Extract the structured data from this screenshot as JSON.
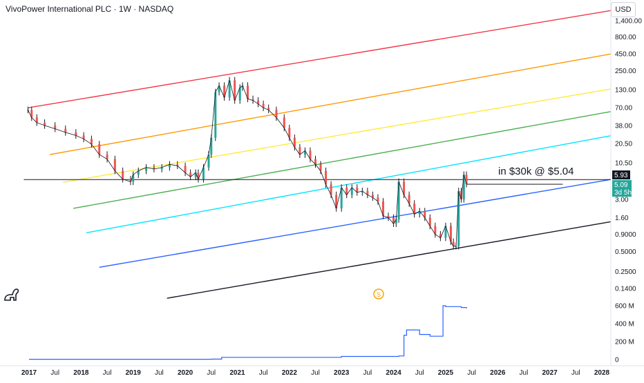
{
  "header": {
    "title": "VivoPower International PLC · 1W · NASDAQ"
  },
  "currency_button": "USD",
  "annotation": "in $30k @ $5.04",
  "event_icon": "S",
  "colors": {
    "candle_up": "#26a69a",
    "candle_down": "#ef5350",
    "candle_wick": "#131722",
    "volume_line": "#2962ff",
    "price_tag_last": "#131722",
    "price_tag_current": "#26a69a"
  },
  "price_tags": [
    {
      "value": "5.93",
      "sub": ""
    },
    {
      "value": "5.09",
      "sub": "3d 5h"
    }
  ],
  "chart_data": {
    "type": "line",
    "scale": "log",
    "price_axis_labels": [
      "1,400.00",
      "800.00",
      "450.00",
      "250.00",
      "130.00",
      "70.00",
      "38.00",
      "20.50",
      "10.50",
      "3.00",
      "1.60",
      "0.9000",
      "0.5000",
      "0.2500",
      "0.1400"
    ],
    "price_axis_values": [
      1400,
      800,
      450,
      250,
      130,
      70,
      38,
      20.5,
      10.5,
      3.0,
      1.6,
      0.9,
      0.5,
      0.25,
      0.14
    ],
    "volume_axis_labels": [
      "600 M",
      "400 M",
      "200 M",
      "0"
    ],
    "volume_axis_values": [
      600,
      400,
      200,
      0
    ],
    "x_axis_labels": [
      "2017",
      "Jul",
      "2018",
      "Jul",
      "2019",
      "Jul",
      "2020",
      "Jul",
      "2021",
      "Jul",
      "2022",
      "Jul",
      "2023",
      "Jul",
      "2024",
      "Jul",
      "2025",
      "Jul",
      "2026",
      "Jul",
      "2027",
      "Jul",
      "2028"
    ],
    "x_axis_values": [
      2017.0,
      2017.5,
      2018.0,
      2018.5,
      2019.0,
      2019.5,
      2020.0,
      2020.5,
      2021.0,
      2021.5,
      2022.0,
      2022.5,
      2023.0,
      2023.5,
      2024.0,
      2024.5,
      2025.0,
      2025.5,
      2026.0,
      2026.5,
      2027.0,
      2027.5,
      2028.0
    ],
    "price_series": {
      "name": "",
      "x": [
        2016.98,
        2017.05,
        2017.15,
        2017.3,
        2017.5,
        2017.7,
        2017.9,
        2018.05,
        2018.2,
        2018.35,
        2018.5,
        2018.65,
        2018.8,
        2018.95,
        2019.0,
        2019.1,
        2019.25,
        2019.4,
        2019.55,
        2019.7,
        2019.85,
        2020.0,
        2020.1,
        2020.2,
        2020.25,
        2020.35,
        2020.45,
        2020.5,
        2020.58,
        2020.65,
        2020.75,
        2020.85,
        2020.95,
        2021.05,
        2021.1,
        2021.2,
        2021.3,
        2021.4,
        2021.5,
        2021.6,
        2021.75,
        2021.9,
        2022.0,
        2022.1,
        2022.2,
        2022.3,
        2022.4,
        2022.5,
        2022.6,
        2022.7,
        2022.8,
        2022.9,
        2023.0,
        2023.1,
        2023.2,
        2023.3,
        2023.4,
        2023.5,
        2023.6,
        2023.7,
        2023.8,
        2023.9,
        2024.0,
        2024.05,
        2024.1,
        2024.2,
        2024.3,
        2024.4,
        2024.5,
        2024.6,
        2024.7,
        2024.8,
        2024.9,
        2025.0,
        2025.1,
        2025.15,
        2025.2,
        2025.25,
        2025.3,
        2025.35,
        2025.4
      ],
      "y": [
        65,
        50,
        42,
        38,
        34,
        30,
        27,
        24,
        20,
        14,
        12,
        8,
        6,
        5.5,
        7,
        8,
        9,
        8.5,
        9,
        10,
        9.5,
        7.5,
        6.5,
        7.5,
        6,
        9,
        14,
        25,
        120,
        150,
        100,
        180,
        90,
        140,
        150,
        95,
        90,
        80,
        70,
        65,
        50,
        35,
        25,
        18,
        14,
        16,
        12,
        10,
        8,
        5,
        3.5,
        2.2,
        4.5,
        3.5,
        4.5,
        3.8,
        4.0,
        3.5,
        3.2,
        2.8,
        1.7,
        1.6,
        1.3,
        1.5,
        5.5,
        3.5,
        2.6,
        1.8,
        2.0,
        1.6,
        1.2,
        0.9,
        0.8,
        1.2,
        0.7,
        0.6,
        0.6,
        4.0,
        3.0,
        7.0,
        5.09
      ]
    },
    "volume_series": {
      "name": "",
      "x": [
        2017.0,
        2020.5,
        2020.7,
        2023.0,
        2024.1,
        2024.2,
        2024.25,
        2024.5,
        2024.7,
        2024.9,
        2024.95,
        2025.0,
        2025.3,
        2025.4
      ],
      "y": [
        3,
        5,
        25,
        35,
        40,
        270,
        330,
        280,
        260,
        260,
        600,
        590,
        580,
        570
      ]
    },
    "channel_lines": [
      {
        "name": "",
        "color": "#f23645",
        "x": [
          2016.98,
          2028.2
        ],
        "y": [
          70,
          2000
        ]
      },
      {
        "name": "",
        "color": "#ff9800",
        "x": [
          2017.4,
          2028.2
        ],
        "y": [
          14,
          450
        ]
      },
      {
        "name": "",
        "color": "#ffeb3b",
        "x": [
          2017.65,
          2028.2
        ],
        "y": [
          5.4,
          135
        ]
      },
      {
        "name": "",
        "color": "#4caf50",
        "x": [
          2017.85,
          2028.2
        ],
        "y": [
          2.2,
          62
        ]
      },
      {
        "name": "",
        "color": "#00e5ff",
        "x": [
          2018.1,
          2028.2
        ],
        "y": [
          0.95,
          27
        ]
      },
      {
        "name": "",
        "color": "#2962ff",
        "x": [
          2018.35,
          2028.2
        ],
        "y": [
          0.29,
          6.0
        ]
      },
      {
        "name": "",
        "color": "#131722",
        "x": [
          2019.65,
          2028.2
        ],
        "y": [
          0.1,
          1.4
        ]
      }
    ],
    "horizontal_lines": [
      {
        "value": 5.93,
        "color": "#131722",
        "x_start": 2016.9,
        "x_end": 2028.3
      },
      {
        "value": 5.04,
        "color": "#131722",
        "x_start": 2025.4,
        "x_end": 2027.25
      }
    ],
    "grid": false,
    "legend": "none"
  }
}
